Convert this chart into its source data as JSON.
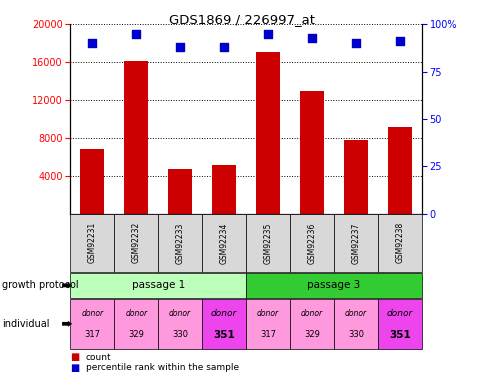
{
  "title": "GDS1869 / 226997_at",
  "samples": [
    "GSM92231",
    "GSM92232",
    "GSM92233",
    "GSM92234",
    "GSM92235",
    "GSM92236",
    "GSM92237",
    "GSM92238"
  ],
  "counts": [
    6800,
    16100,
    4700,
    5100,
    17100,
    13000,
    7800,
    9200
  ],
  "percentiles": [
    90,
    95,
    88,
    88,
    95,
    93,
    90,
    91
  ],
  "ylim_left": [
    0,
    20000
  ],
  "ylim_right": [
    0,
    100
  ],
  "yticks_left": [
    4000,
    8000,
    12000,
    16000,
    20000
  ],
  "yticks_right": [
    0,
    25,
    50,
    75,
    100
  ],
  "bar_color": "#cc0000",
  "dot_color": "#0000cc",
  "passage_1_color": "#bbffbb",
  "passage_3_color": "#33cc33",
  "passage_1_label": "passage 1",
  "passage_3_label": "passage 3",
  "donors": [
    "317",
    "329",
    "330",
    "351",
    "317",
    "329",
    "330",
    "351"
  ],
  "donor_colors_light": "#ff99dd",
  "donor_colors_dark": "#ee44ee",
  "legend_count_label": "count",
  "legend_percentile_label": "percentile rank within the sample",
  "sample_box_color": "#d8d8d8"
}
